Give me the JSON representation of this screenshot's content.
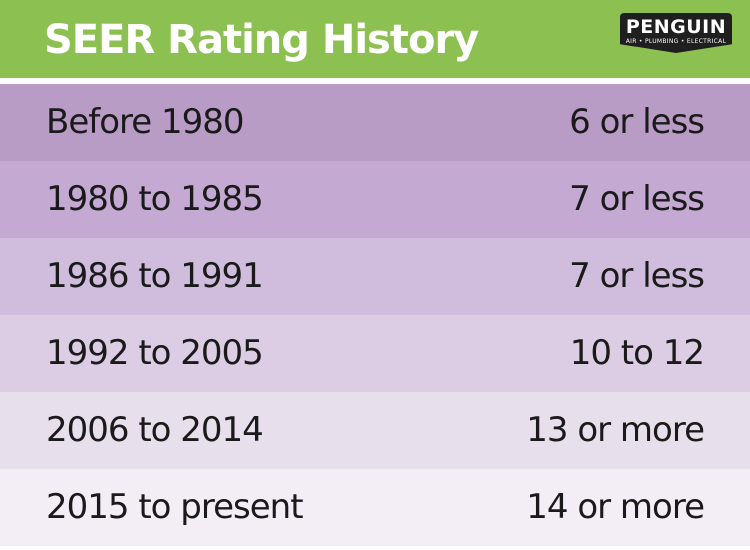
{
  "header": {
    "title": "SEER Rating History",
    "background_color": "#8cc152"
  },
  "logo": {
    "text": "PENGUIN",
    "tagline": "AIR • PLUMBING • ELECTRICAL"
  },
  "table": {
    "rows": [
      {
        "period": "Before 1980",
        "seer": "6 or less",
        "color": "#b89cc6"
      },
      {
        "period": "1980 to 1985",
        "seer": "7 or less",
        "color": "#c4a9d2"
      },
      {
        "period": "1986 to 1991",
        "seer": "7 or less",
        "color": "#d0bcdc"
      },
      {
        "period": "1992 to 2005",
        "seer": "10 to 12",
        "color": "#dccde4"
      },
      {
        "period": "2006 to 2014",
        "seer": "13 or more",
        "color": "#e8dfed"
      },
      {
        "period": "2015 to present",
        "seer": "14 or more",
        "color": "#f3eef5"
      }
    ]
  }
}
